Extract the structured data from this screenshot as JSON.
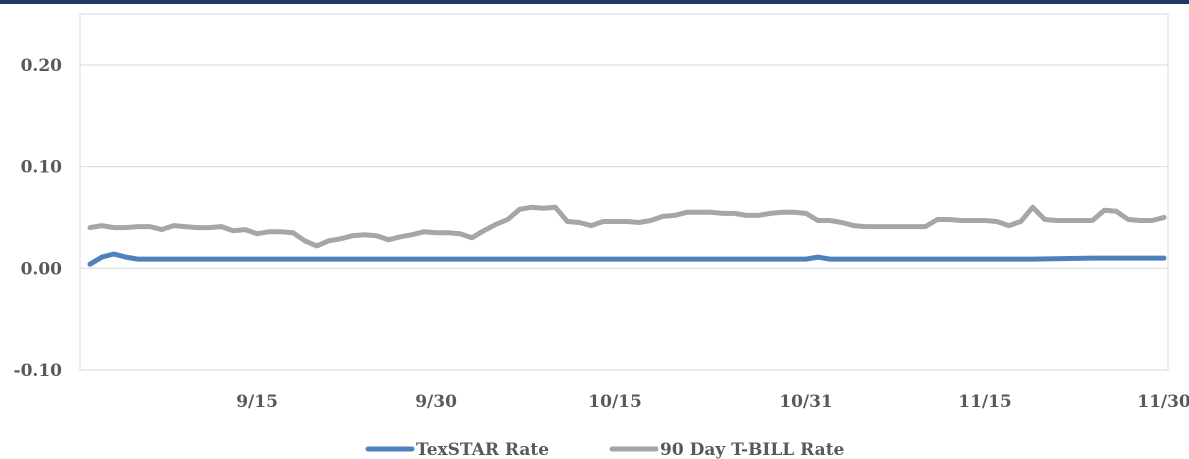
{
  "chart_data": {
    "type": "line",
    "title": "",
    "xlabel": "",
    "ylabel": "",
    "ylim": [
      -0.1,
      0.25
    ],
    "yticks": [
      "0.20",
      "0.10",
      "0.00",
      "-0.10"
    ],
    "ytick_values": [
      0.2,
      0.1,
      0.0,
      -0.1
    ],
    "xticks": [
      "9/15",
      "9/30",
      "10/15",
      "10/31",
      "11/15",
      "11/30"
    ],
    "xtick_values": [
      15,
      30,
      45,
      61,
      76,
      91
    ],
    "x_range": [
      1,
      91
    ],
    "grid": true,
    "legend_position": "bottom",
    "series": [
      {
        "name": "TexSTAR Rate",
        "color": "#4f81bd",
        "x": [
          1,
          2,
          3,
          4,
          5,
          6,
          10,
          20,
          30,
          40,
          50,
          60,
          61,
          62,
          63,
          64,
          70,
          80,
          85,
          90,
          91
        ],
        "values": [
          0.004,
          0.011,
          0.014,
          0.011,
          0.009,
          0.009,
          0.009,
          0.009,
          0.009,
          0.009,
          0.009,
          0.009,
          0.009,
          0.011,
          0.009,
          0.009,
          0.009,
          0.009,
          0.01,
          0.01,
          0.01
        ]
      },
      {
        "name": "90 Day T-BILL Rate",
        "color": "#a6a6a6",
        "x": [
          1,
          2,
          3,
          4,
          5,
          6,
          7,
          8,
          9,
          10,
          11,
          12,
          13,
          14,
          15,
          16,
          17,
          18,
          19,
          20,
          21,
          22,
          23,
          24,
          25,
          26,
          27,
          28,
          29,
          30,
          31,
          32,
          33,
          34,
          35,
          36,
          37,
          38,
          39,
          40,
          41,
          42,
          43,
          44,
          45,
          46,
          47,
          48,
          49,
          50,
          51,
          52,
          53,
          54,
          55,
          56,
          57,
          58,
          59,
          60,
          61,
          62,
          63,
          64,
          65,
          66,
          67,
          68,
          69,
          70,
          71,
          72,
          73,
          74,
          75,
          76,
          77,
          78,
          79,
          80,
          81,
          82,
          83,
          84,
          85,
          86,
          87,
          88,
          89,
          90,
          91
        ],
        "values": [
          0.04,
          0.042,
          0.04,
          0.04,
          0.041,
          0.041,
          0.038,
          0.042,
          0.041,
          0.04,
          0.04,
          0.041,
          0.037,
          0.038,
          0.034,
          0.036,
          0.036,
          0.035,
          0.027,
          0.022,
          0.027,
          0.029,
          0.032,
          0.033,
          0.032,
          0.028,
          0.031,
          0.033,
          0.036,
          0.035,
          0.035,
          0.034,
          0.03,
          0.037,
          0.043,
          0.048,
          0.058,
          0.06,
          0.059,
          0.06,
          0.046,
          0.045,
          0.042,
          0.046,
          0.046,
          0.046,
          0.045,
          0.047,
          0.051,
          0.052,
          0.055,
          0.055,
          0.055,
          0.054,
          0.054,
          0.052,
          0.052,
          0.054,
          0.055,
          0.055,
          0.054,
          0.047,
          0.047,
          0.045,
          0.042,
          0.041,
          0.041,
          0.041,
          0.041,
          0.041,
          0.041,
          0.048,
          0.048,
          0.047,
          0.047,
          0.047,
          0.046,
          0.042,
          0.046,
          0.06,
          0.048,
          0.047,
          0.047,
          0.047,
          0.047,
          0.057,
          0.056,
          0.048,
          0.047,
          0.047,
          0.05
        ]
      }
    ]
  }
}
